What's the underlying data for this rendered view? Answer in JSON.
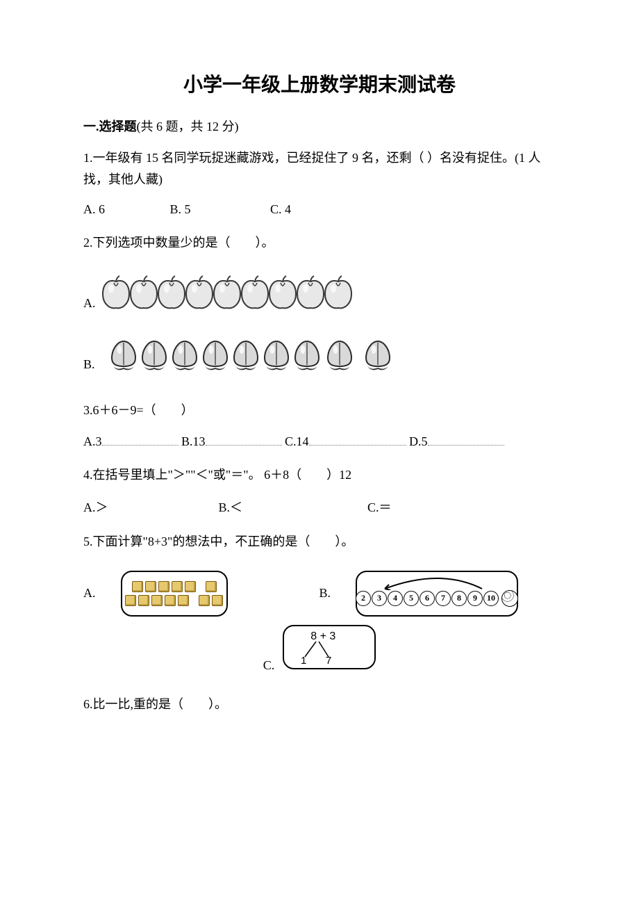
{
  "title": "小学一年级上册数学期末测试卷",
  "section1": {
    "label": "一.选择题",
    "meta": "(共 6 题，共 12 分)"
  },
  "q1": {
    "text": "1.一年级有 15 名同学玩捉迷藏游戏，已经捉住了 9 名，还剩（  ）名没有捉住。(1 人找，其他人藏)",
    "a": "A. 6",
    "b": "B. 5",
    "c": "C. 4"
  },
  "q2": {
    "text": "2.下列选项中数量少的是（　　）。",
    "a_label": "A.",
    "b_label": "B.",
    "apple_count": 9,
    "peach_count": 9
  },
  "q3": {
    "text": "3.6＋6－9=（　　）",
    "a": "A.3",
    "b": "B.13",
    "c": "C.14",
    "d": "D.5"
  },
  "q4": {
    "text": "4.在括号里填上\"＞\"\"＜\"或\"＝\"。 6＋8（　　）12",
    "a": "A.＞",
    "b": "B.＜",
    "c": "C.＝"
  },
  "q5": {
    "text": "5.下面计算\"8+3\"的想法中，不正确的是（　　）。",
    "a_label": "A.",
    "b_label": "B.",
    "c_label": "C.",
    "c_expr": "8  +  3",
    "c_left": "1",
    "c_right": "7",
    "b_numbers": [
      "2",
      "3",
      "4",
      "5",
      "6",
      "7",
      "8",
      "9",
      "10"
    ]
  },
  "q6": {
    "text": "6.比一比,重的是（　　）。"
  },
  "style": {
    "apple_fill": "#e8e8e8",
    "apple_stroke": "#3a3a3a",
    "peach_fill": "#d9d9d9",
    "peach_stroke": "#2a2a2a",
    "leaf_fill": "#333333"
  }
}
